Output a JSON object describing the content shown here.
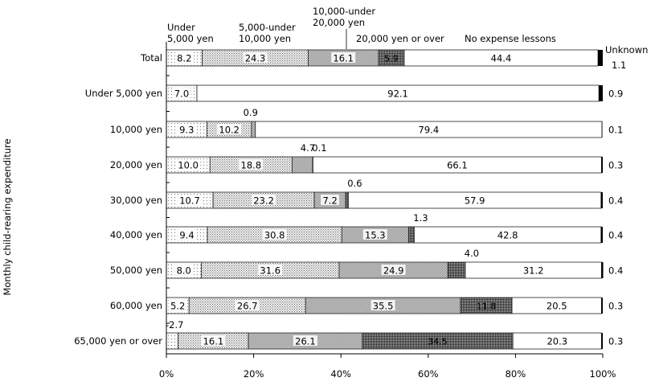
{
  "chart_data": {
    "type": "bar",
    "orientation": "horizontal",
    "stacked": true,
    "ylabel": "Monthly child-rearing expenditure",
    "categories": [
      "Total",
      "Under 5,000 yen",
      "10,000 yen",
      "20,000 yen",
      "30,000 yen",
      "40,000 yen",
      "50,000 yen",
      "60,000 yen",
      "65,000 yen or over"
    ],
    "series": [
      {
        "name": "Under 5,000 yen",
        "values": [
          8.2,
          7.0,
          9.3,
          10.0,
          10.7,
          9.4,
          8.0,
          5.2,
          2.7
        ]
      },
      {
        "name": "5,000-under 10,000 yen",
        "values": [
          24.3,
          0.0,
          10.2,
          18.8,
          23.2,
          30.8,
          31.6,
          26.7,
          16.1
        ]
      },
      {
        "name": "10,000-under 20,000 yen",
        "values": [
          16.1,
          0.0,
          0.9,
          4.7,
          7.2,
          15.3,
          24.9,
          35.5,
          26.1
        ]
      },
      {
        "name": "20,000 yen or over",
        "values": [
          5.9,
          0.0,
          0.0,
          0.1,
          0.6,
          1.3,
          4.0,
          11.8,
          34.5
        ]
      },
      {
        "name": "No expense lessons",
        "values": [
          44.4,
          92.1,
          79.4,
          66.1,
          57.9,
          42.8,
          31.2,
          20.5,
          20.3
        ]
      },
      {
        "name": "Unknown",
        "values": [
          1.1,
          0.9,
          0.1,
          0.3,
          0.4,
          0.4,
          0.4,
          0.3,
          0.3
        ]
      }
    ],
    "legend_labels": {
      "s0": [
        "Under",
        "5,000 yen"
      ],
      "s1": [
        "5,000-under",
        "10,000 yen"
      ],
      "s2": [
        "10,000-under",
        "20,000 yen"
      ],
      "s3": [
        "20,000 yen or over"
      ],
      "s4": [
        "No expense lessons"
      ],
      "s5": [
        "Unknown"
      ]
    },
    "xticks": [
      "0%",
      "20%",
      "40%",
      "60%",
      "80%",
      "100%"
    ],
    "xlim": [
      0,
      100
    ],
    "legend": "top",
    "colors": [
      "#f2f2f2",
      "#e6e6e6",
      "#d9d9d9",
      "#8c8c8c",
      "#ffffff",
      "#000000"
    ]
  }
}
